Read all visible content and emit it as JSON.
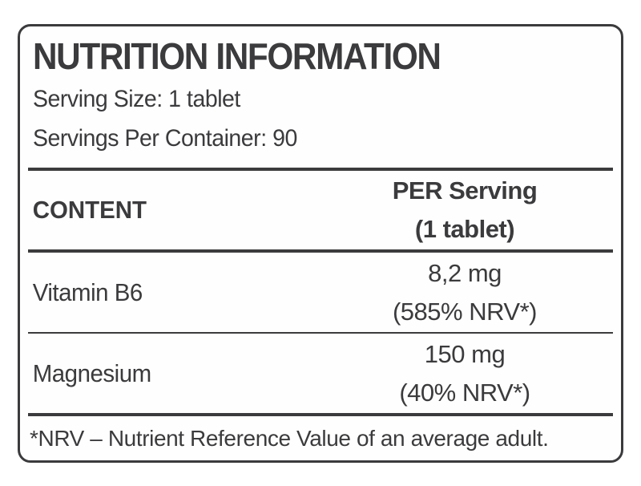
{
  "label": {
    "title": "NUTRITION INFORMATION",
    "serving_size": "Serving Size: 1 tablet",
    "servings_per_container": "Servings Per Container: 90",
    "table": {
      "content_header": "CONTENT",
      "per_serving_header_line1": "PER Serving",
      "per_serving_header_line2": "(1 tablet)",
      "rows": [
        {
          "name": "Vitamin B6",
          "amount": "8,2 mg",
          "nrv": "(585% NRV*)"
        },
        {
          "name": "Magnesium",
          "amount": "150 mg",
          "nrv": "(40% NRV*)"
        }
      ]
    },
    "footnote": "*NRV – Nutrient Reference Value of an average adult.",
    "colors": {
      "text": "#3b3b3d",
      "background": "#ffffff"
    }
  }
}
